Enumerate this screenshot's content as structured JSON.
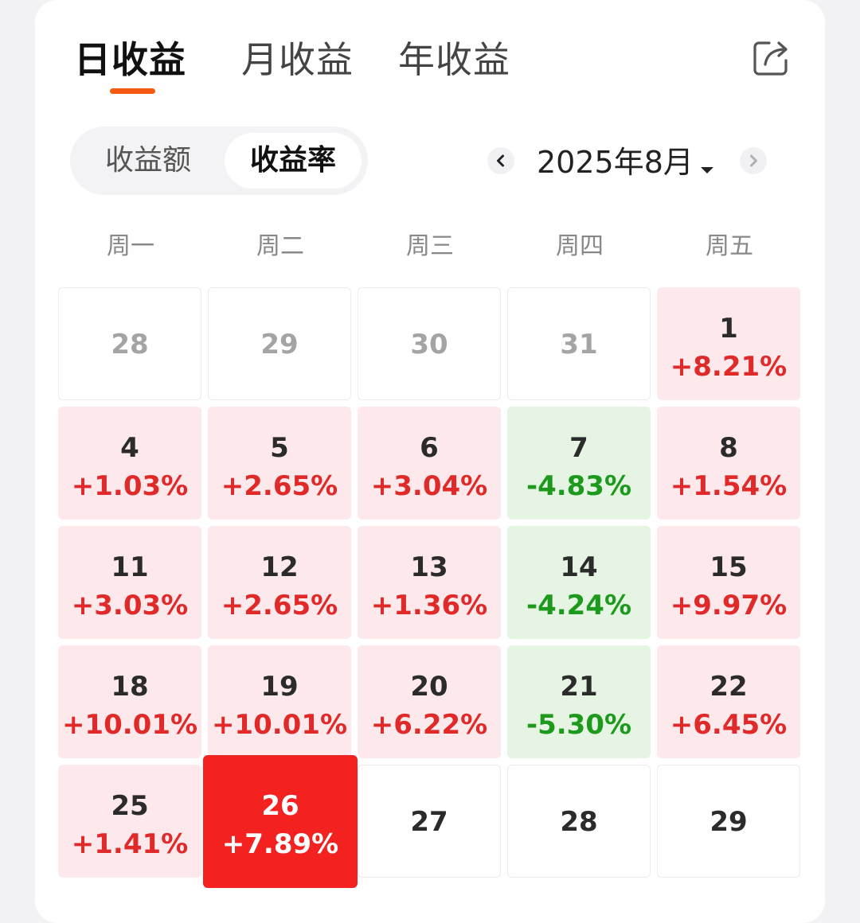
{
  "tabs": [
    {
      "label": "日收益",
      "active": true
    },
    {
      "label": "月收益",
      "active": false
    },
    {
      "label": "年收益",
      "active": false
    }
  ],
  "icons": {
    "share": "share-export-icon",
    "prev": "chevron-left-icon",
    "next": "chevron-right-icon",
    "caret": "caret-down-icon"
  },
  "segment": {
    "options": [
      "收益额",
      "收益率"
    ],
    "selected": "收益率"
  },
  "month_nav": {
    "label": "2025年8月"
  },
  "weekdays": [
    "周一",
    "周二",
    "周三",
    "周四",
    "周五"
  ],
  "colors": {
    "accent": "#f45a10",
    "up_bg": "#fde8ec",
    "up_text": "#e02a2a",
    "down_bg": "#e6f5e3",
    "down_text": "#1d9a1d",
    "selected_bg": "#f42121"
  },
  "calendar": [
    [
      {
        "day": "28",
        "pct": "",
        "trend": "none",
        "muted": true
      },
      {
        "day": "29",
        "pct": "",
        "trend": "none",
        "muted": true
      },
      {
        "day": "30",
        "pct": "",
        "trend": "none",
        "muted": true
      },
      {
        "day": "31",
        "pct": "",
        "trend": "none",
        "muted": true
      },
      {
        "day": "1",
        "pct": "+8.21%",
        "trend": "up"
      }
    ],
    [
      {
        "day": "4",
        "pct": "+1.03%",
        "trend": "up"
      },
      {
        "day": "5",
        "pct": "+2.65%",
        "trend": "up"
      },
      {
        "day": "6",
        "pct": "+3.04%",
        "trend": "up"
      },
      {
        "day": "7",
        "pct": "-4.83%",
        "trend": "down"
      },
      {
        "day": "8",
        "pct": "+1.54%",
        "trend": "up"
      }
    ],
    [
      {
        "day": "11",
        "pct": "+3.03%",
        "trend": "up"
      },
      {
        "day": "12",
        "pct": "+2.65%",
        "trend": "up"
      },
      {
        "day": "13",
        "pct": "+1.36%",
        "trend": "up"
      },
      {
        "day": "14",
        "pct": "-4.24%",
        "trend": "down"
      },
      {
        "day": "15",
        "pct": "+9.97%",
        "trend": "up"
      }
    ],
    [
      {
        "day": "18",
        "pct": "+10.01%",
        "trend": "up"
      },
      {
        "day": "19",
        "pct": "+10.01%",
        "trend": "up"
      },
      {
        "day": "20",
        "pct": "+6.22%",
        "trend": "up"
      },
      {
        "day": "21",
        "pct": "-5.30%",
        "trend": "down"
      },
      {
        "day": "22",
        "pct": "+6.45%",
        "trend": "up"
      }
    ],
    [
      {
        "day": "25",
        "pct": "+1.41%",
        "trend": "up"
      },
      {
        "day": "26",
        "pct": "+7.89%",
        "trend": "up",
        "selected": true
      },
      {
        "day": "27",
        "pct": "",
        "trend": "none"
      },
      {
        "day": "28",
        "pct": "",
        "trend": "none"
      },
      {
        "day": "29",
        "pct": "",
        "trend": "none"
      }
    ]
  ]
}
